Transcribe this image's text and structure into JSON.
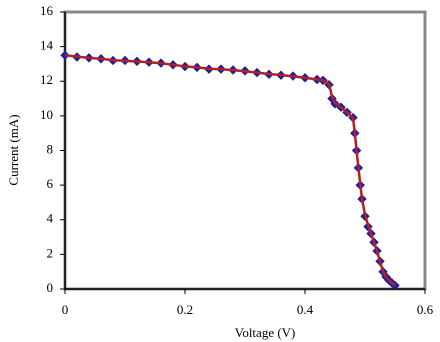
{
  "chart_data": {
    "type": "scatter",
    "x_label": "Voltage (V)",
    "y_label": "Current (mA)",
    "x": [
      0,
      0.02,
      0.04,
      0.06,
      0.08,
      0.1,
      0.12,
      0.14,
      0.16,
      0.18,
      0.2,
      0.22,
      0.24,
      0.26,
      0.28,
      0.3,
      0.32,
      0.34,
      0.36,
      0.38,
      0.4,
      0.42,
      0.43,
      0.44,
      0.445,
      0.45,
      0.46,
      0.47,
      0.48,
      0.483,
      0.486,
      0.489,
      0.492,
      0.495,
      0.5,
      0.505,
      0.51,
      0.515,
      0.52,
      0.525,
      0.53,
      0.535,
      0.54,
      0.545,
      0.55
    ],
    "series": [
      {
        "style": "marker",
        "color": "#1f1f9e",
        "values": [
          13.5,
          13.4,
          13.35,
          13.3,
          13.2,
          13.2,
          13.15,
          13.1,
          13.05,
          12.95,
          12.85,
          12.8,
          12.7,
          12.7,
          12.65,
          12.6,
          12.5,
          12.4,
          12.35,
          12.3,
          12.2,
          12.1,
          12.05,
          11.8,
          11.0,
          10.7,
          10.5,
          10.2,
          9.9,
          9.0,
          8.0,
          7.0,
          6.0,
          5.2,
          4.2,
          3.6,
          3.2,
          2.7,
          2.2,
          1.6,
          1.0,
          0.7,
          0.5,
          0.35,
          0.2
        ]
      },
      {
        "style": "line",
        "color": "#b22222",
        "values": [
          13.5,
          13.42,
          13.35,
          13.3,
          13.22,
          13.18,
          13.14,
          13.1,
          13.04,
          12.95,
          12.86,
          12.8,
          12.72,
          12.69,
          12.64,
          12.58,
          12.5,
          12.42,
          12.36,
          12.28,
          12.2,
          12.1,
          12.05,
          11.85,
          11.1,
          10.75,
          10.5,
          10.2,
          9.9,
          9.0,
          8.0,
          7.0,
          6.1,
          5.2,
          4.3,
          3.7,
          3.2,
          2.7,
          2.2,
          1.6,
          1.0,
          0.7,
          0.5,
          0.35,
          0.2
        ]
      }
    ],
    "xlim": [
      0,
      0.6
    ],
    "xticks": [
      0,
      0.2,
      0.4,
      0.6
    ],
    "ylim": [
      0,
      16
    ],
    "yticks": [
      0,
      2,
      4,
      6,
      8,
      10,
      12,
      14,
      16
    ]
  }
}
